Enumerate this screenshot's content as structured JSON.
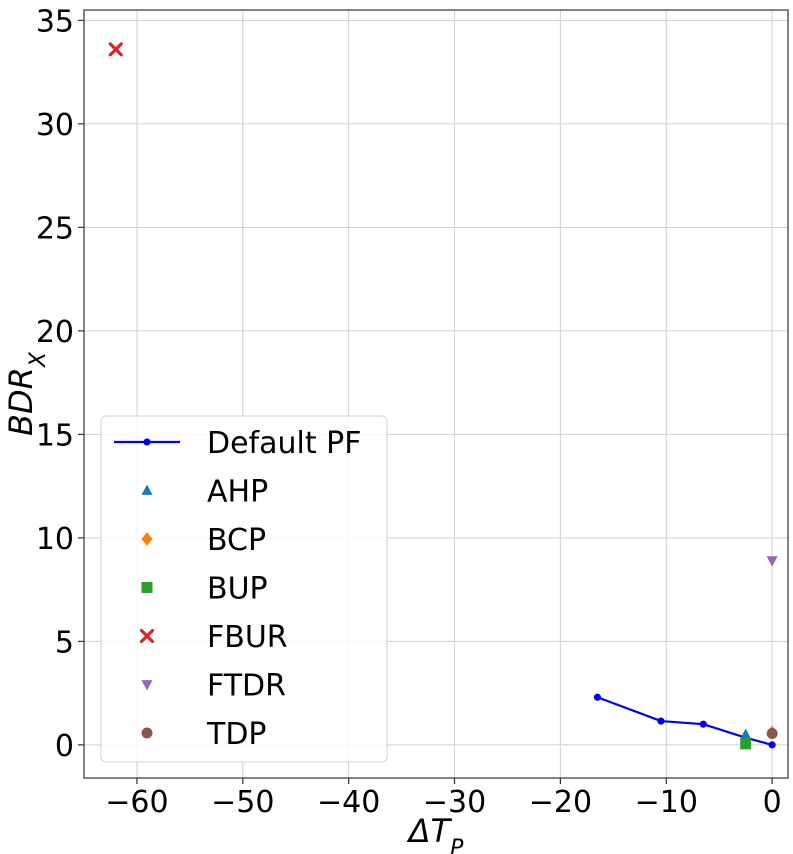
{
  "chart_data": {
    "type": "scatter",
    "title": "",
    "xlabel": "ΔT_P",
    "ylabel": "BDR_X",
    "xlim": [
      -65,
      1.5
    ],
    "ylim": [
      -1.6,
      35.5
    ],
    "xticks": [
      -60,
      -50,
      -40,
      -30,
      -20,
      -10,
      0
    ],
    "xtick_labels": [
      "−60",
      "−50",
      "−40",
      "−30",
      "−20",
      "−10",
      "0"
    ],
    "yticks": [
      0,
      5,
      10,
      15,
      20,
      25,
      30,
      35
    ],
    "ytick_labels": [
      "0",
      "5",
      "10",
      "15",
      "20",
      "25",
      "30",
      "35"
    ],
    "grid": true,
    "legend_position": "lower-left",
    "series": [
      {
        "name": "Default PF",
        "kind": "line",
        "marker": "circle",
        "color": "#0000ee",
        "points": [
          [
            -16.5,
            2.3
          ],
          [
            -10.5,
            1.15
          ],
          [
            -6.5,
            1.0
          ],
          [
            -2.5,
            0.35
          ],
          [
            0,
            0.0
          ]
        ]
      },
      {
        "name": "AHP",
        "kind": "scatter",
        "marker": "triangle-up",
        "color": "#1f77b4",
        "points": [
          [
            -2.5,
            0.5
          ]
        ]
      },
      {
        "name": "BCP",
        "kind": "scatter",
        "marker": "diamond",
        "color": "#ff7f0e",
        "points": [
          [
            0,
            0.6
          ]
        ]
      },
      {
        "name": "BUP",
        "kind": "scatter",
        "marker": "square",
        "color": "#2ca02c",
        "points": [
          [
            -2.5,
            0.05
          ]
        ]
      },
      {
        "name": "FBUR",
        "kind": "scatter",
        "marker": "x-cross",
        "color": "#d62728",
        "points": [
          [
            -62,
            33.6
          ]
        ]
      },
      {
        "name": "FTDR",
        "kind": "scatter",
        "marker": "triangle-down",
        "color": "#9467bd",
        "points": [
          [
            0,
            8.9
          ]
        ]
      },
      {
        "name": "TDP",
        "kind": "scatter",
        "marker": "circle",
        "color": "#8c564b",
        "points": [
          [
            0,
            0.55
          ]
        ]
      }
    ]
  }
}
